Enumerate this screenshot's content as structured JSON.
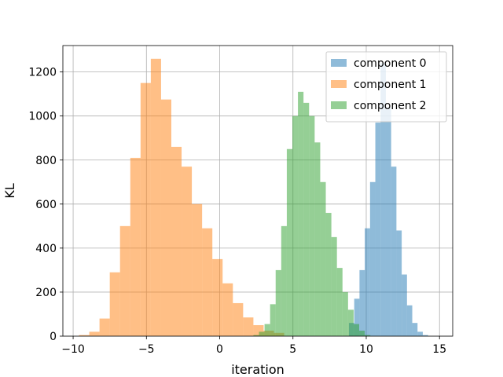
{
  "chart_data": {
    "type": "histogram",
    "title": "",
    "xlabel": "iteration",
    "ylabel": "KL",
    "xlim": [
      -10.7,
      15.9
    ],
    "ylim": [
      0,
      1320
    ],
    "xticks": [
      -10,
      -5,
      0,
      5,
      10,
      15
    ],
    "xtick_labels": [
      "−10",
      "−5",
      "0",
      "5",
      "10",
      "15"
    ],
    "yticks": [
      0,
      200,
      400,
      600,
      800,
      1000,
      1200
    ],
    "ytick_labels": [
      "0",
      "200",
      "400",
      "600",
      "800",
      "1000",
      "1200"
    ],
    "grid": true,
    "legend_position": "top-right",
    "series": [
      {
        "name": "component 0",
        "color": "#1f77b4",
        "opacity": 0.5,
        "bins": [
          {
            "x0": 8.82,
            "x1": 9.18,
            "count": 60
          },
          {
            "x0": 9.18,
            "x1": 9.54,
            "count": 170
          },
          {
            "x0": 9.54,
            "x1": 9.9,
            "count": 300
          },
          {
            "x0": 9.9,
            "x1": 10.26,
            "count": 490
          },
          {
            "x0": 10.26,
            "x1": 10.62,
            "count": 700
          },
          {
            "x0": 10.62,
            "x1": 10.98,
            "count": 970
          },
          {
            "x0": 10.98,
            "x1": 11.34,
            "count": 1240
          },
          {
            "x0": 11.34,
            "x1": 11.7,
            "count": 1040
          },
          {
            "x0": 11.7,
            "x1": 12.06,
            "count": 770
          },
          {
            "x0": 12.06,
            "x1": 12.42,
            "count": 480
          },
          {
            "x0": 12.42,
            "x1": 12.78,
            "count": 280
          },
          {
            "x0": 12.78,
            "x1": 13.14,
            "count": 140
          },
          {
            "x0": 13.14,
            "x1": 13.5,
            "count": 60
          },
          {
            "x0": 13.5,
            "x1": 13.86,
            "count": 20
          },
          {
            "x0": 13.86,
            "x1": 14.22,
            "count": 5
          }
        ]
      },
      {
        "name": "component 1",
        "color": "#ff7f0e",
        "opacity": 0.5,
        "bins": [
          {
            "x0": -9.6,
            "x1": -8.9,
            "count": 5
          },
          {
            "x0": -8.9,
            "x1": -8.2,
            "count": 20
          },
          {
            "x0": -8.2,
            "x1": -7.5,
            "count": 80
          },
          {
            "x0": -7.5,
            "x1": -6.8,
            "count": 290
          },
          {
            "x0": -6.8,
            "x1": -6.1,
            "count": 500
          },
          {
            "x0": -6.1,
            "x1": -5.4,
            "count": 810
          },
          {
            "x0": -5.4,
            "x1": -4.7,
            "count": 1150
          },
          {
            "x0": -4.7,
            "x1": -4.0,
            "count": 1260
          },
          {
            "x0": -4.0,
            "x1": -3.3,
            "count": 1075
          },
          {
            "x0": -3.3,
            "x1": -2.6,
            "count": 860
          },
          {
            "x0": -2.6,
            "x1": -1.9,
            "count": 770
          },
          {
            "x0": -1.9,
            "x1": -1.2,
            "count": 600
          },
          {
            "x0": -1.2,
            "x1": -0.5,
            "count": 490
          },
          {
            "x0": -0.5,
            "x1": 0.2,
            "count": 350
          },
          {
            "x0": 0.2,
            "x1": 0.9,
            "count": 240
          },
          {
            "x0": 0.9,
            "x1": 1.6,
            "count": 150
          },
          {
            "x0": 1.6,
            "x1": 2.3,
            "count": 85
          },
          {
            "x0": 2.3,
            "x1": 3.0,
            "count": 50
          },
          {
            "x0": 3.0,
            "x1": 3.7,
            "count": 25
          },
          {
            "x0": 3.7,
            "x1": 4.4,
            "count": 15
          }
        ]
      },
      {
        "name": "component 2",
        "color": "#2ca02c",
        "opacity": 0.5,
        "bins": [
          {
            "x0": 2.3,
            "x1": 2.68,
            "count": 5
          },
          {
            "x0": 2.68,
            "x1": 3.06,
            "count": 20
          },
          {
            "x0": 3.06,
            "x1": 3.44,
            "count": 55
          },
          {
            "x0": 3.44,
            "x1": 3.82,
            "count": 145
          },
          {
            "x0": 3.82,
            "x1": 4.2,
            "count": 300
          },
          {
            "x0": 4.2,
            "x1": 4.58,
            "count": 500
          },
          {
            "x0": 4.58,
            "x1": 4.96,
            "count": 850
          },
          {
            "x0": 4.96,
            "x1": 5.34,
            "count": 1000
          },
          {
            "x0": 5.34,
            "x1": 5.72,
            "count": 1110
          },
          {
            "x0": 5.72,
            "x1": 6.1,
            "count": 1060
          },
          {
            "x0": 6.1,
            "x1": 6.48,
            "count": 1000
          },
          {
            "x0": 6.48,
            "x1": 6.86,
            "count": 880
          },
          {
            "x0": 6.86,
            "x1": 7.24,
            "count": 700
          },
          {
            "x0": 7.24,
            "x1": 7.62,
            "count": 560
          },
          {
            "x0": 7.62,
            "x1": 8.0,
            "count": 450
          },
          {
            "x0": 8.0,
            "x1": 8.38,
            "count": 310
          },
          {
            "x0": 8.38,
            "x1": 8.76,
            "count": 200
          },
          {
            "x0": 8.76,
            "x1": 9.14,
            "count": 120
          },
          {
            "x0": 9.14,
            "x1": 9.52,
            "count": 55
          },
          {
            "x0": 9.52,
            "x1": 9.9,
            "count": 25
          },
          {
            "x0": 9.9,
            "x1": 10.28,
            "count": 5
          }
        ]
      }
    ]
  }
}
